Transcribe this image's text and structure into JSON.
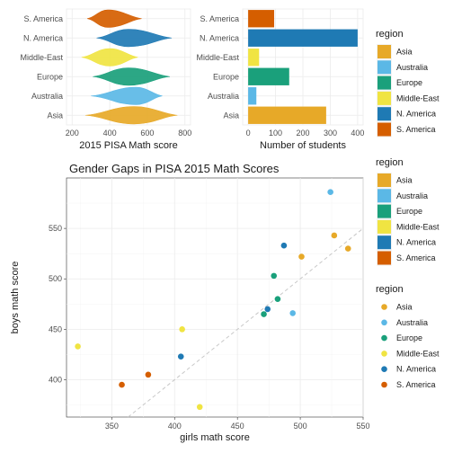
{
  "regions": [
    "Asia",
    "Australia",
    "Europe",
    "Middle-East",
    "N. America",
    "S. America"
  ],
  "colors": {
    "Asia": "#E7A928",
    "Australia": "#5BB8E6",
    "Europe": "#1AA07B",
    "Middle-East": "#F0E442",
    "N. America": "#1F7AB4",
    "S. America": "#D55E00"
  },
  "chart_data": [
    {
      "type": "violin",
      "xlabel": "2015 PISA Math score",
      "ylabel": "",
      "xlim": [
        170,
        830
      ],
      "xticks": [
        200,
        400,
        600,
        800
      ],
      "categories": [
        "S. America",
        "N. America",
        "Middle-East",
        "Europe",
        "Australia",
        "Asia"
      ],
      "distributions": [
        {
          "name": "S. America",
          "min": 280,
          "mode": 390,
          "max": 570
        },
        {
          "name": "N. America",
          "min": 330,
          "mode": 500,
          "max": 730
        },
        {
          "name": "Middle-East",
          "min": 250,
          "mode": 400,
          "max": 550
        },
        {
          "name": "Europe",
          "min": 310,
          "mode": 500,
          "max": 720
        },
        {
          "name": "Australia",
          "min": 300,
          "mode": 540,
          "max": 680
        },
        {
          "name": "Asia",
          "min": 270,
          "mode": 530,
          "max": 760
        }
      ]
    },
    {
      "type": "bar",
      "orientation": "horizontal",
      "xlabel": "Number of students",
      "ylabel": "",
      "xlim": [
        -20,
        420
      ],
      "xticks": [
        0,
        100,
        200,
        300,
        400
      ],
      "categories": [
        "S. America",
        "N. America",
        "Middle-East",
        "Europe",
        "Australia",
        "Asia"
      ],
      "values": [
        95,
        400,
        40,
        150,
        30,
        285
      ]
    },
    {
      "type": "scatter",
      "title": "Gender Gaps in PISA 2015 Math Scores",
      "xlabel": "girls math score",
      "ylabel": "boys math score",
      "xlim": [
        314,
        550
      ],
      "ylim": [
        363,
        600
      ],
      "xticks": [
        350,
        400,
        450,
        500,
        550
      ],
      "yticks": [
        400,
        450,
        500,
        550
      ],
      "reference_line": "y = x",
      "points": [
        {
          "region": "Australia",
          "x": 524,
          "y": 586
        },
        {
          "region": "Asia",
          "x": 527,
          "y": 543
        },
        {
          "region": "Asia",
          "x": 538,
          "y": 530
        },
        {
          "region": "Asia",
          "x": 501,
          "y": 522
        },
        {
          "region": "N. America",
          "x": 487,
          "y": 533
        },
        {
          "region": "Europe",
          "x": 479,
          "y": 503
        },
        {
          "region": "Europe",
          "x": 482,
          "y": 480
        },
        {
          "region": "N. America",
          "x": 474,
          "y": 470
        },
        {
          "region": "Europe",
          "x": 471,
          "y": 465
        },
        {
          "region": "Australia",
          "x": 494,
          "y": 466
        },
        {
          "region": "Middle-East",
          "x": 406,
          "y": 450
        },
        {
          "region": "Middle-East",
          "x": 323,
          "y": 433
        },
        {
          "region": "N. America",
          "x": 405,
          "y": 423
        },
        {
          "region": "S. America",
          "x": 379,
          "y": 405
        },
        {
          "region": "S. America",
          "x": 358,
          "y": 395
        },
        {
          "region": "Middle-East",
          "x": 420,
          "y": 373
        }
      ]
    }
  ],
  "legends": [
    {
      "title": "region",
      "style": "box"
    },
    {
      "title": "region",
      "style": "box"
    },
    {
      "title": "region",
      "style": "point"
    }
  ]
}
